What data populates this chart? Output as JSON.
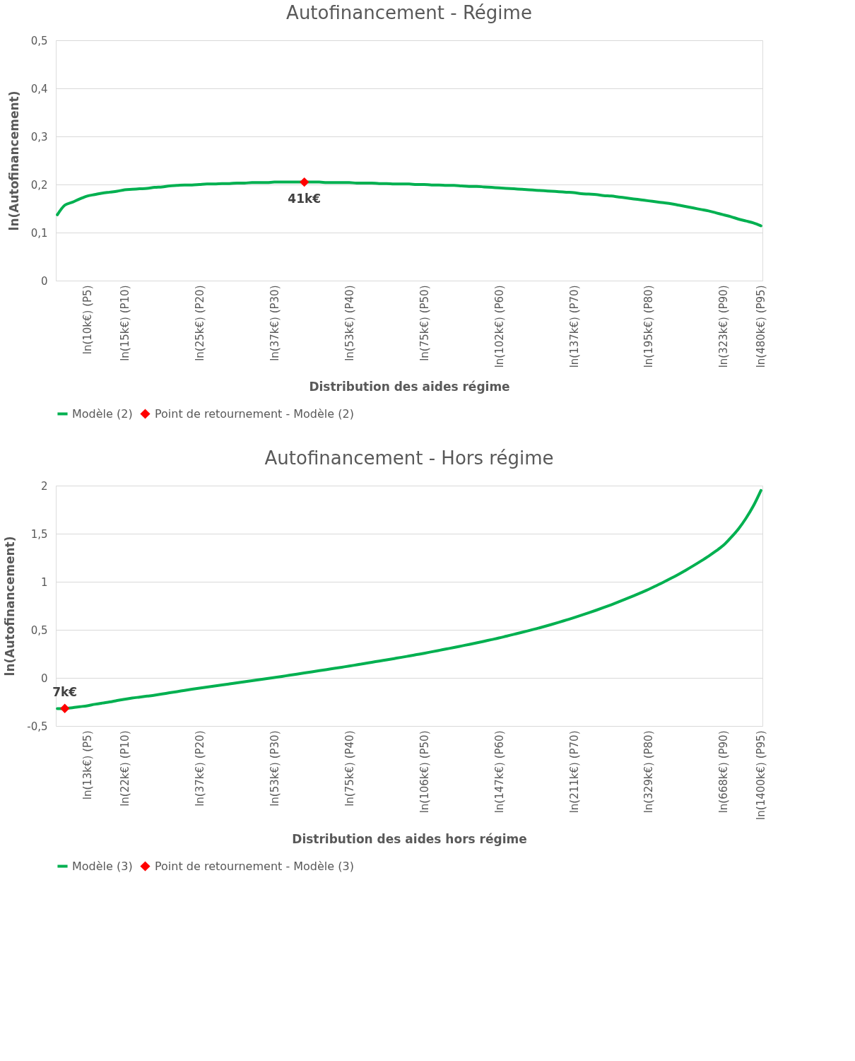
{
  "chart_data": [
    {
      "type": "line",
      "title": "Autofinancement - Régime",
      "xlabel": "Distribution des aides régime",
      "ylabel": "ln(Autofinancement)",
      "categories": [
        null,
        null,
        null,
        null,
        "ln(10k€) (P5)",
        null,
        null,
        null,
        null,
        "ln(15k€) (P10)",
        null,
        null,
        null,
        null,
        null,
        null,
        null,
        null,
        null,
        "ln(25k€) (P20)",
        null,
        null,
        null,
        null,
        null,
        null,
        null,
        null,
        null,
        "ln(37k€) (P30)",
        null,
        null,
        null,
        null,
        null,
        null,
        null,
        null,
        null,
        "ln(53k€) (P40)",
        null,
        null,
        null,
        null,
        null,
        null,
        null,
        null,
        null,
        "ln(75k€) (P50)",
        null,
        null,
        null,
        null,
        null,
        null,
        null,
        null,
        null,
        "ln(102k€) (P60)",
        null,
        null,
        null,
        null,
        null,
        null,
        null,
        null,
        null,
        "ln(137k€) (P70)",
        null,
        null,
        null,
        null,
        null,
        null,
        null,
        null,
        null,
        "ln(195k€) (P80)",
        null,
        null,
        null,
        null,
        null,
        null,
        null,
        null,
        null,
        "ln(323k€) (P90)",
        null,
        null,
        null,
        null,
        "ln(480k€) (P95)"
      ],
      "series": [
        {
          "name": "Modèle (2)",
          "type": "line",
          "color": "#00b050",
          "values": [
            0.137,
            0.157,
            0.163,
            0.17,
            0.176,
            0.179,
            0.182,
            0.184,
            0.186,
            0.189,
            0.19,
            0.191,
            0.192,
            0.194,
            0.195,
            0.197,
            0.198,
            0.199,
            0.199,
            0.2,
            0.201,
            0.201,
            0.202,
            0.202,
            0.203,
            0.203,
            0.204,
            0.204,
            0.204,
            0.205,
            0.205,
            0.205,
            0.205,
            0.205,
            0.205,
            0.205,
            0.204,
            0.204,
            0.204,
            0.204,
            0.203,
            0.203,
            0.203,
            0.202,
            0.202,
            0.201,
            0.201,
            0.201,
            0.2,
            0.2,
            0.199,
            0.199,
            0.198,
            0.198,
            0.197,
            0.196,
            0.196,
            0.195,
            0.194,
            0.193,
            0.192,
            0.191,
            0.19,
            0.189,
            0.188,
            0.187,
            0.186,
            0.185,
            0.184,
            0.183,
            0.181,
            0.18,
            0.179,
            0.177,
            0.176,
            0.174,
            0.172,
            0.17,
            0.168,
            0.166,
            0.164,
            0.162,
            0.16,
            0.157,
            0.154,
            0.151,
            0.148,
            0.145,
            0.141,
            0.137,
            0.133,
            0.128,
            0.124,
            0.12,
            0.114
          ]
        },
        {
          "name": "Point de retournement - Modèle (2)",
          "type": "scatter",
          "marker": "diamond",
          "color": "#ff0000",
          "values": [
            null,
            null,
            null,
            null,
            null,
            null,
            null,
            null,
            null,
            null,
            null,
            null,
            null,
            null,
            null,
            null,
            null,
            null,
            null,
            null,
            null,
            null,
            null,
            null,
            null,
            null,
            null,
            null,
            null,
            null,
            null,
            null,
            null,
            0.205,
            null,
            null,
            null,
            null,
            null,
            null,
            null,
            null,
            null,
            null,
            null,
            null,
            null,
            null,
            null,
            null,
            null,
            null,
            null,
            null,
            null,
            null,
            null,
            null,
            null,
            null,
            null,
            null,
            null,
            null,
            null,
            null,
            null,
            null,
            null,
            null,
            null,
            null,
            null,
            null,
            null,
            null,
            null,
            null,
            null,
            null,
            null,
            null,
            null,
            null,
            null,
            null,
            null,
            null,
            null,
            null,
            null,
            null,
            null,
            null,
            null
          ]
        }
      ],
      "annotations": [
        {
          "text": "41k€",
          "y": 0.205
        }
      ],
      "ylim": [
        0,
        0.5
      ],
      "yticks": [
        {
          "value": 0,
          "label": "0"
        },
        {
          "value": 0.1,
          "label": "0,1"
        },
        {
          "value": 0.2,
          "label": "0,2"
        },
        {
          "value": 0.3,
          "label": "0,3"
        },
        {
          "value": 0.4,
          "label": "0,4"
        },
        {
          "value": 0.5,
          "label": "0,5"
        }
      ],
      "grid": "y",
      "legend": "bottom"
    },
    {
      "type": "line",
      "title": "Autofinancement - Hors régime",
      "xlabel": "Distribution des aides hors régime",
      "ylabel": "ln(Autofinancement)",
      "categories": [
        null,
        null,
        null,
        null,
        "ln(13k€) (P5)",
        null,
        null,
        null,
        null,
        "ln(22k€) (P10)",
        null,
        null,
        null,
        null,
        null,
        null,
        null,
        null,
        null,
        "ln(37k€) (P20)",
        null,
        null,
        null,
        null,
        null,
        null,
        null,
        null,
        null,
        "ln(53k€) (P30)",
        null,
        null,
        null,
        null,
        null,
        null,
        null,
        null,
        null,
        "ln(75k€) (P40)",
        null,
        null,
        null,
        null,
        null,
        null,
        null,
        null,
        null,
        "ln(106k€) (P50)",
        null,
        null,
        null,
        null,
        null,
        null,
        null,
        null,
        null,
        "ln(147k€) (P60)",
        null,
        null,
        null,
        null,
        null,
        null,
        null,
        null,
        null,
        "ln(211k€) (P70)",
        null,
        null,
        null,
        null,
        null,
        null,
        null,
        null,
        null,
        "ln(329k€) (P80)",
        null,
        null,
        null,
        null,
        null,
        null,
        null,
        null,
        null,
        "ln(668k€) (P90)",
        null,
        null,
        null,
        null,
        "ln(1400k€) (P95)"
      ],
      "series": [
        {
          "name": "Modèle (3)",
          "type": "line",
          "color": "#00b050",
          "values": [
            -0.32,
            -0.318,
            -0.31,
            -0.3,
            -0.29,
            -0.275,
            -0.262,
            -0.25,
            -0.235,
            -0.222,
            -0.21,
            -0.2,
            -0.19,
            -0.18,
            -0.168,
            -0.155,
            -0.143,
            -0.13,
            -0.118,
            -0.106,
            -0.095,
            -0.085,
            -0.074,
            -0.063,
            -0.052,
            -0.041,
            -0.03,
            -0.019,
            -0.008,
            0.003,
            0.015,
            0.027,
            0.039,
            0.051,
            0.063,
            0.075,
            0.087,
            0.099,
            0.111,
            0.123,
            0.136,
            0.149,
            0.162,
            0.175,
            0.188,
            0.201,
            0.214,
            0.228,
            0.242,
            0.256,
            0.271,
            0.286,
            0.301,
            0.316,
            0.332,
            0.348,
            0.364,
            0.381,
            0.398,
            0.415,
            0.434,
            0.453,
            0.472,
            0.492,
            0.512,
            0.533,
            0.555,
            0.578,
            0.602,
            0.626,
            0.651,
            0.677,
            0.704,
            0.732,
            0.761,
            0.791,
            0.822,
            0.854,
            0.887,
            0.921,
            0.958,
            0.996,
            1.036,
            1.078,
            1.122,
            1.168,
            1.216,
            1.266,
            1.32,
            1.38,
            1.46,
            1.55,
            1.66,
            1.79,
            1.95
          ]
        },
        {
          "name": "Point de retournement - Modèle (3)",
          "type": "scatter",
          "marker": "diamond",
          "color": "#ff0000",
          "values": [
            null,
            -0.318,
            null,
            null,
            null,
            null,
            null,
            null,
            null,
            null,
            null,
            null,
            null,
            null,
            null,
            null,
            null,
            null,
            null,
            null,
            null,
            null,
            null,
            null,
            null,
            null,
            null,
            null,
            null,
            null,
            null,
            null,
            null,
            null,
            null,
            null,
            null,
            null,
            null,
            null,
            null,
            null,
            null,
            null,
            null,
            null,
            null,
            null,
            null,
            null,
            null,
            null,
            null,
            null,
            null,
            null,
            null,
            null,
            null,
            null,
            null,
            null,
            null,
            null,
            null,
            null,
            null,
            null,
            null,
            null,
            null,
            null,
            null,
            null,
            null,
            null,
            null,
            null,
            null,
            null,
            null,
            null,
            null,
            null,
            null,
            null,
            null,
            null,
            null,
            null,
            null,
            null,
            null,
            null,
            null
          ]
        }
      ],
      "annotations": [
        {
          "text": "7k€",
          "y": -0.318
        }
      ],
      "ylim": [
        -0.5,
        2
      ],
      "yticks": [
        {
          "value": -0.5,
          "label": "-0,5"
        },
        {
          "value": 0,
          "label": "0"
        },
        {
          "value": 0.5,
          "label": "0,5"
        },
        {
          "value": 1,
          "label": "1"
        },
        {
          "value": 1.5,
          "label": "1,5"
        },
        {
          "value": 2,
          "label": "2"
        }
      ],
      "grid": "y",
      "legend": "bottom"
    }
  ]
}
